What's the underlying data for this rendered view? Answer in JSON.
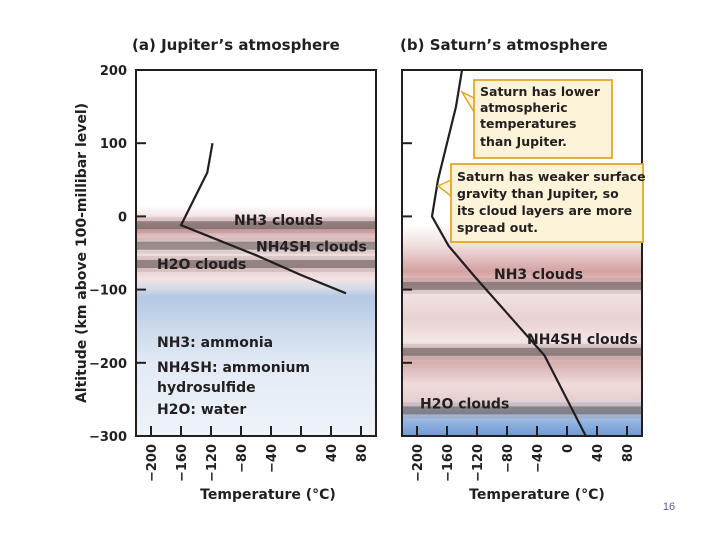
{
  "page_number": "16",
  "colors": {
    "curve": "#231f20",
    "note_fill": "#fdf3d8",
    "note_border": "#e3a628",
    "haze_blue": "#6b9bd6",
    "haze_red": "#c28585"
  },
  "chart_data": [
    {
      "type": "line",
      "panel_letter": "(a)",
      "title": "Jupiter’s atmosphere",
      "ylabel": "Altitude (km above 100-millibar level)",
      "xlabel": "Temperature (°C)",
      "xlim": [
        -220,
        100
      ],
      "ylim": [
        -300,
        200
      ],
      "xticks": [
        "−200",
        "−160",
        "−120",
        "−80",
        "−40",
        "0",
        "40",
        "80"
      ],
      "yticks": [
        "200",
        "100",
        "0",
        "−100",
        "−200",
        "−300"
      ],
      "series": [
        {
          "x": [
            -118,
            -125,
            -160,
            -60,
            0,
            60
          ],
          "y": [
            100,
            60,
            -12,
            -53,
            -80,
            -105
          ]
        }
      ],
      "cloud_layers": [
        {
          "label": "NH3 clouds",
          "altitude": -12
        },
        {
          "label": "NH4SH clouds",
          "altitude": -40
        },
        {
          "label": "H2O clouds",
          "altitude": -65
        }
      ],
      "legend": [
        "NH3: ammonia",
        "NH4SH: ammonium",
        "hydrosulfide",
        "H2O: water"
      ]
    },
    {
      "type": "line",
      "panel_letter": "(b)",
      "title": "Saturn’s atmosphere",
      "xlabel": "Temperature (°C)",
      "xlim": [
        -220,
        100
      ],
      "xticks": [
        "−200",
        "−160",
        "−120",
        "−80",
        "−40",
        "0",
        "40",
        "80"
      ],
      "series": [
        {
          "x": [
            -140,
            -148,
            -172,
            -180,
            -158,
            -125,
            -30,
            25
          ],
          "y": [
            200,
            150,
            50,
            0,
            -40,
            -80,
            -190,
            -300
          ]
        }
      ],
      "cloud_layers": [
        {
          "label": "NH3 clouds",
          "altitude": -95
        },
        {
          "label": "NH4SH clouds",
          "altitude": -185
        },
        {
          "label": "H2O clouds",
          "altitude": -265
        }
      ],
      "annotations": [
        [
          "Saturn has lower",
          "atmospheric",
          "temperatures",
          "than Jupiter."
        ],
        [
          "Saturn has weaker surface",
          "gravity than Jupiter, so",
          "its cloud layers are more",
          "spread out."
        ]
      ]
    }
  ]
}
